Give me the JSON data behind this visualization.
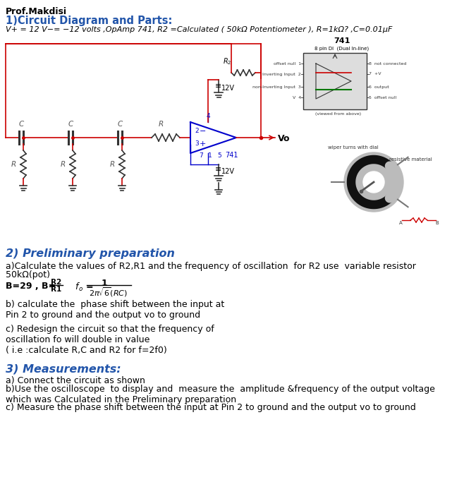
{
  "bg_color": "#ffffff",
  "title_line1": "Prof.Makdisi",
  "title_line2": "1)Circuit Diagram and Parts:",
  "title_line3": "V+ = 12 V−= −12 volts ,OpAmp 741, R2 =Calculated ( 50kΩ Potentiometer ), R=1kΩ? ,C=0.01μF",
  "section2_title": "2) Preliminary preparation",
  "section3_title": "3) Measurements:",
  "blue_color": "#2255aa",
  "black": "#000000",
  "red": "#cc0000",
  "blue_c": "#0000cc"
}
